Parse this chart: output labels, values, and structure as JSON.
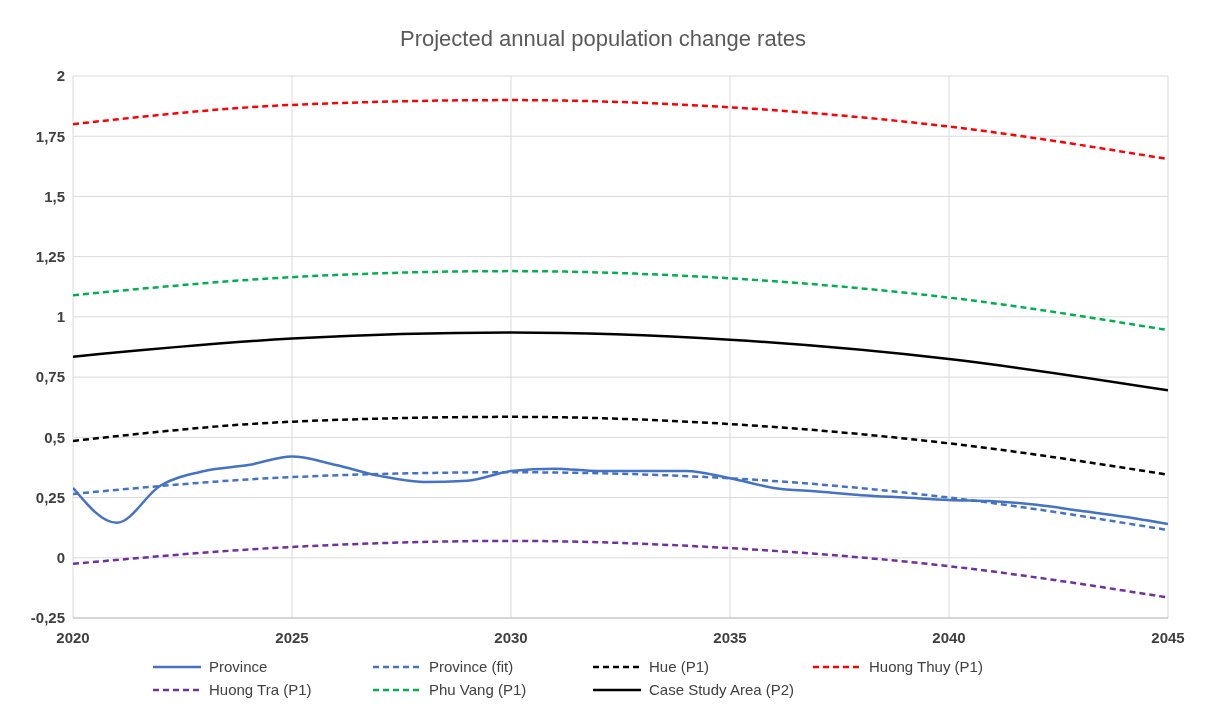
{
  "chart_data": {
    "type": "line",
    "title": "Projected annual population change rates",
    "xlim": [
      2020,
      2045
    ],
    "xticks": [
      2020,
      2025,
      2030,
      2035,
      2040,
      2045
    ],
    "ylim": [
      -0.25,
      2
    ],
    "yticks": [
      {
        "value": -0.25,
        "label": "-0,25"
      },
      0,
      {
        "value": 0.25,
        "label": "0,25"
      },
      {
        "value": 0.5,
        "label": "0,5"
      },
      {
        "value": 0.75,
        "label": "0,75"
      },
      1,
      {
        "value": 1.25,
        "label": "1,25"
      },
      {
        "value": 1.5,
        "label": "1,5"
      },
      {
        "value": 1.75,
        "label": "1,75"
      },
      2
    ],
    "grid": true,
    "legend": "bottom",
    "marker": "none",
    "series": [
      {
        "name": "Province",
        "color": "#4472c4",
        "line_style": "solid",
        "x": [
          2020,
          2021,
          2022,
          2023,
          2024,
          2025,
          2026,
          2027,
          2028,
          2029,
          2030,
          2031,
          2032,
          2033,
          2034,
          2035,
          2036,
          2037,
          2038,
          2039,
          2040,
          2041,
          2042,
          2043,
          2044,
          2045
        ],
        "values": [
          0.29,
          0.145,
          0.3,
          0.36,
          0.385,
          0.42,
          0.385,
          0.34,
          0.315,
          0.32,
          0.36,
          0.37,
          0.36,
          0.36,
          0.36,
          0.33,
          0.29,
          0.275,
          0.26,
          0.25,
          0.24,
          0.235,
          0.22,
          0.195,
          0.17,
          0.14
        ]
      },
      {
        "name": "Province (fit)",
        "color": "#4472c4",
        "line_style": "dashed",
        "x": [
          2020,
          2025,
          2030,
          2035,
          2040,
          2045
        ],
        "values": [
          0.265,
          0.335,
          0.355,
          0.33,
          0.25,
          0.115
        ]
      },
      {
        "name": "Hue (P1)",
        "color": "#000000",
        "line_style": "dashed",
        "x": [
          2020,
          2025,
          2030,
          2035,
          2040,
          2045
        ],
        "values": [
          0.485,
          0.565,
          0.585,
          0.555,
          0.475,
          0.345
        ]
      },
      {
        "name": "Huong Thuy (P1)",
        "color": "#ff0000",
        "line_style": "dashed",
        "x": [
          2020,
          2025,
          2030,
          2035,
          2040,
          2045
        ],
        "values": [
          1.8,
          1.88,
          1.9,
          1.87,
          1.79,
          1.655
        ]
      },
      {
        "name": "Huong Tra (P1)",
        "color": "#7030a0",
        "line_style": "dashed",
        "x": [
          2020,
          2025,
          2030,
          2035,
          2040,
          2045
        ],
        "values": [
          -0.025,
          0.045,
          0.07,
          0.04,
          -0.035,
          -0.165
        ]
      },
      {
        "name": "Phu Vang (P1)",
        "color": "#00b050",
        "line_style": "dashed",
        "x": [
          2020,
          2025,
          2030,
          2035,
          2040,
          2045
        ],
        "values": [
          1.09,
          1.165,
          1.19,
          1.16,
          1.08,
          0.945
        ]
      },
      {
        "name": "Case Study Area (P2)",
        "color": "#000000",
        "line_style": "solid",
        "x": [
          2020,
          2025,
          2030,
          2035,
          2040,
          2045
        ],
        "values": [
          0.835,
          0.91,
          0.935,
          0.905,
          0.825,
          0.695
        ]
      }
    ]
  }
}
